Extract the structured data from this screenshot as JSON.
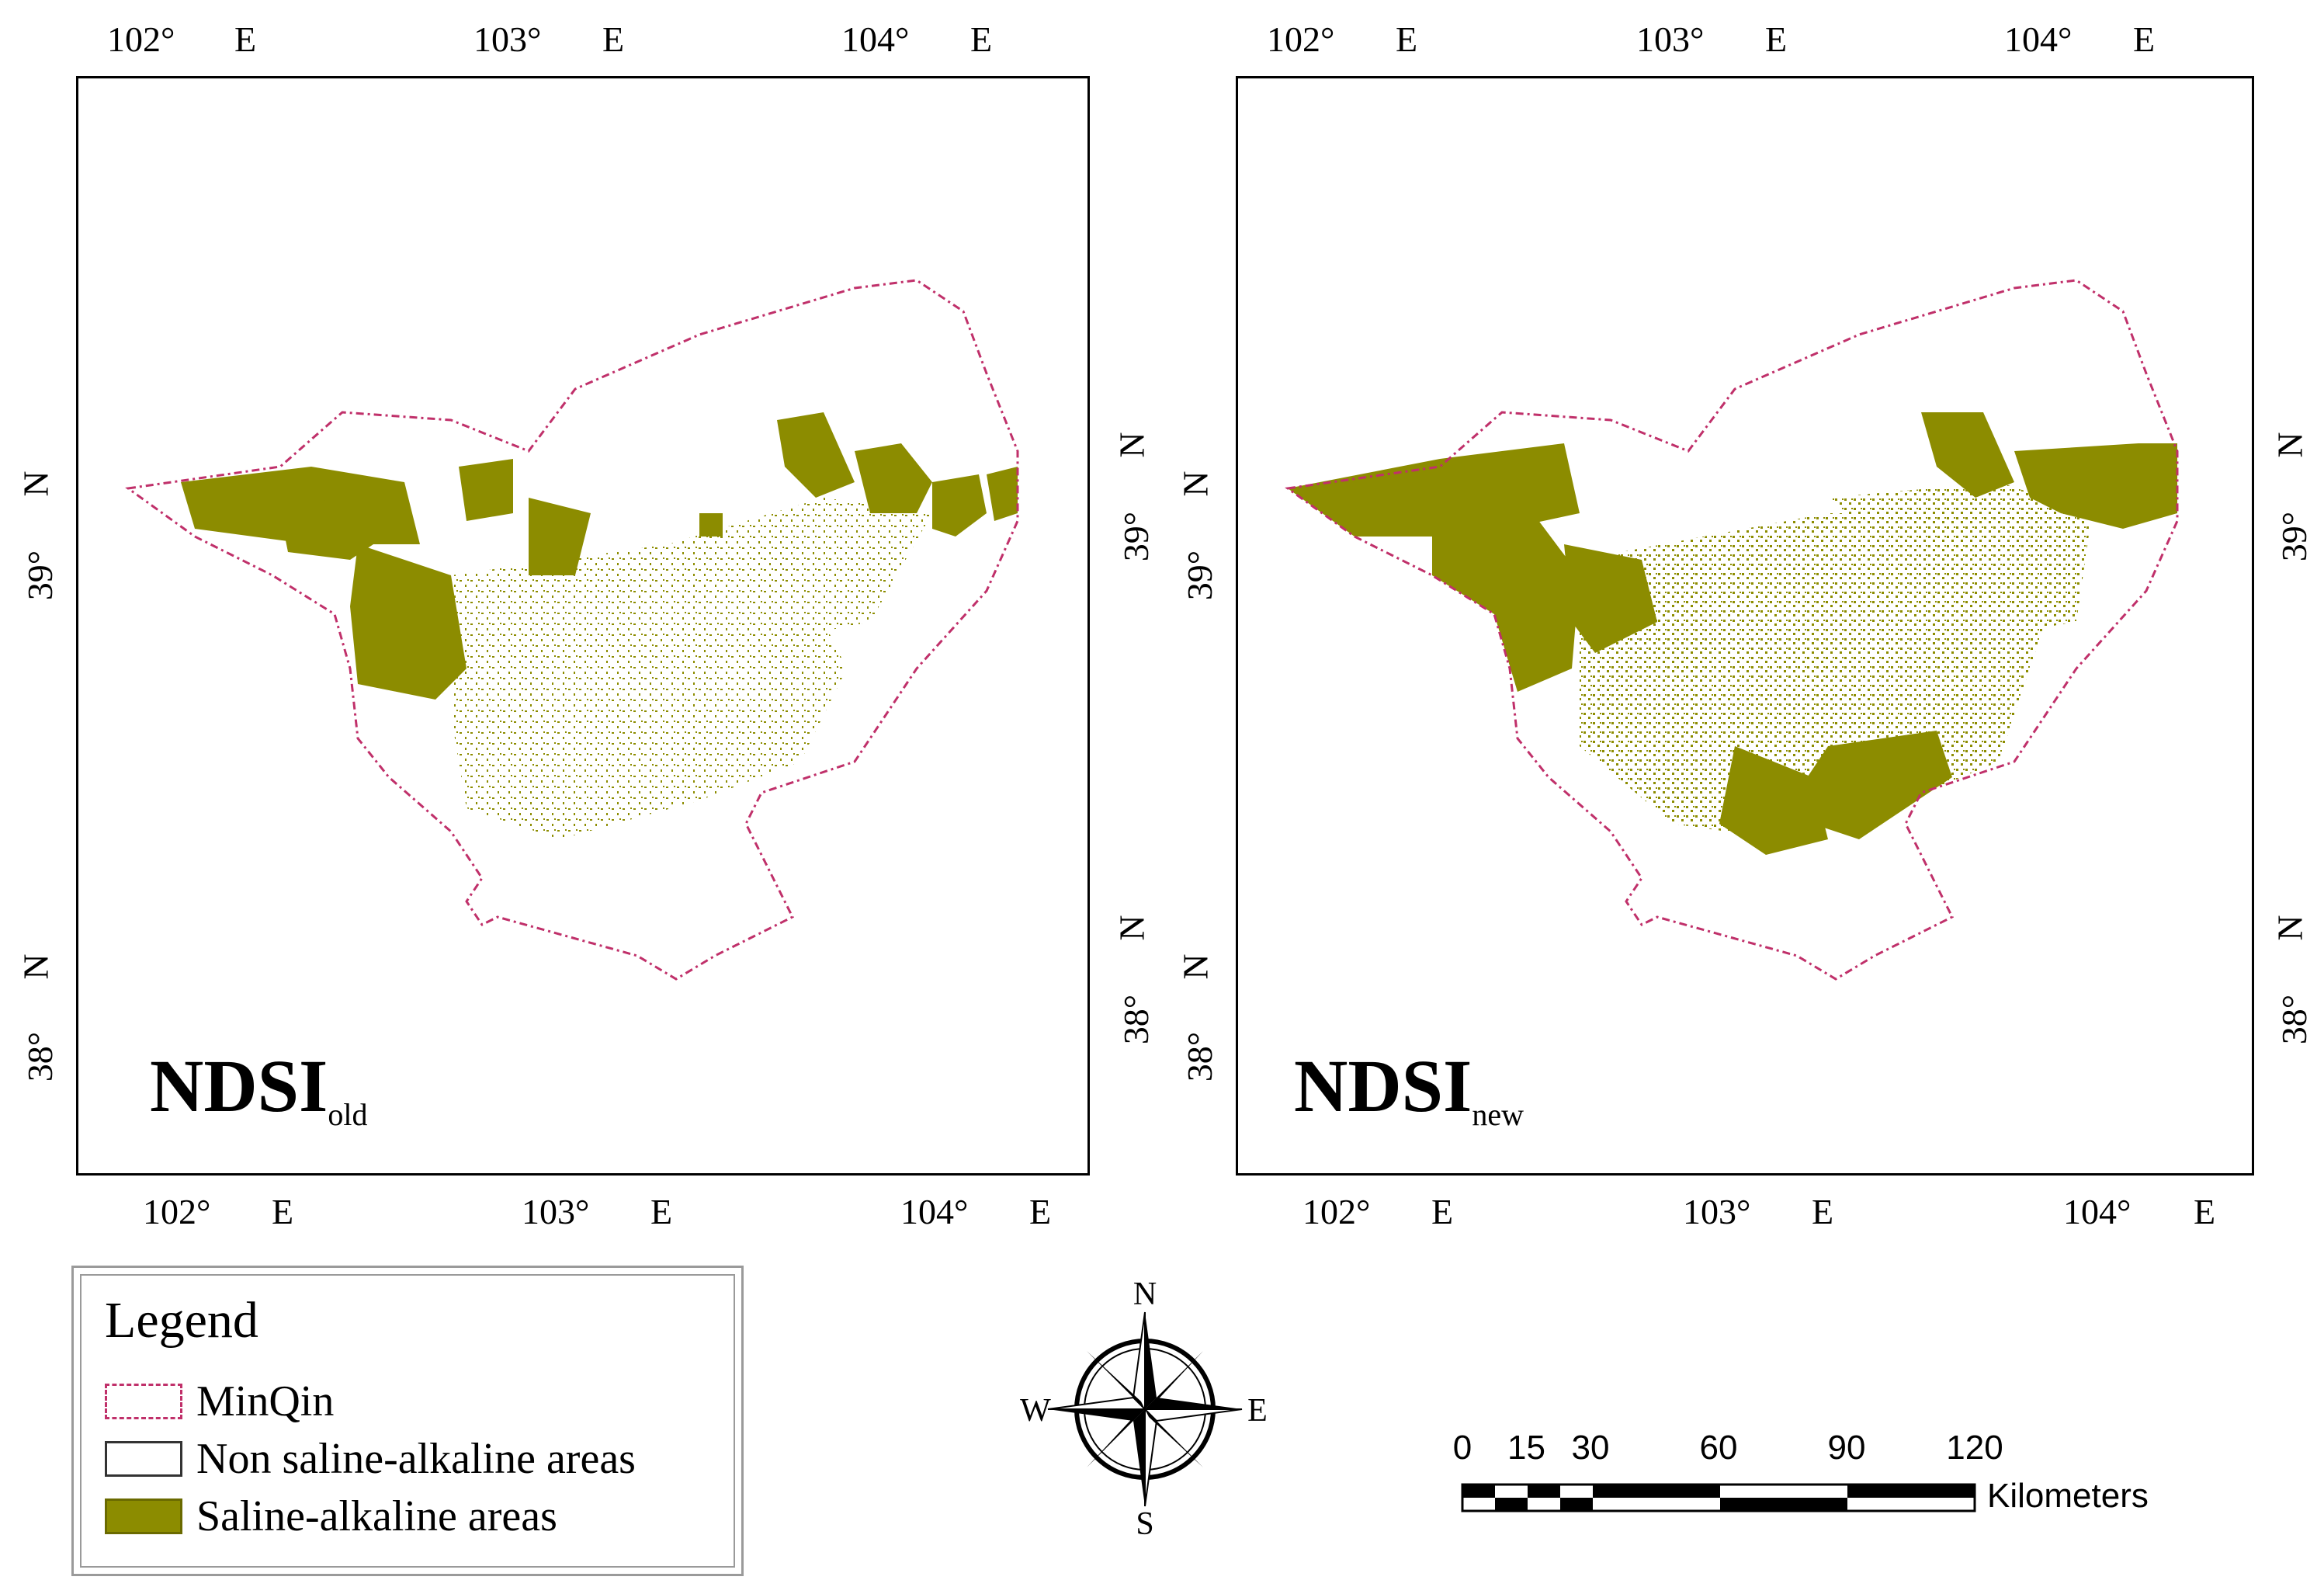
{
  "maps": [
    {
      "title": "NDSI",
      "subscript": "old",
      "lon_top": [
        "102°",
        "E",
        "103°",
        "E",
        "104°",
        "E"
      ],
      "lon_bottom": [
        "102°",
        "E",
        "103°",
        "E",
        "104°",
        "E"
      ],
      "lat_left": [
        "39°",
        "N",
        "38°",
        "N"
      ],
      "lat_right": [
        "39°",
        "N",
        "38°",
        "N"
      ]
    },
    {
      "title": "NDSI",
      "subscript": "new",
      "lon_top": [
        "102°",
        "E",
        "103°",
        "E",
        "104°",
        "E"
      ],
      "lon_bottom": [
        "102°",
        "E",
        "103°",
        "E",
        "104°",
        "E"
      ],
      "lat_left": [
        "39°",
        "N",
        "38°",
        "N"
      ],
      "lat_right": [
        "39°",
        "N",
        "38°",
        "N"
      ]
    }
  ],
  "legend": {
    "title": "Legend",
    "items": [
      {
        "label": "MinQin",
        "swatch": "dashed-outline",
        "color": "#c0306a"
      },
      {
        "label": "Non saline-alkaline areas",
        "swatch": "white",
        "color": "#ffffff"
      },
      {
        "label": "Saline-alkaline areas",
        "swatch": "fill",
        "color": "#8c8c00"
      }
    ]
  },
  "compass": {
    "north": "N",
    "south": "S",
    "east": "E",
    "west": "W"
  },
  "scalebar": {
    "ticks": [
      "0",
      "15",
      "30",
      "60",
      "90",
      "120"
    ],
    "tick_values": [
      0,
      15,
      30,
      60,
      90,
      120
    ],
    "unit": "Kilometers"
  },
  "colors": {
    "boundary": "#c0306a",
    "saline": "#8c8c00",
    "frame": "#000000"
  }
}
